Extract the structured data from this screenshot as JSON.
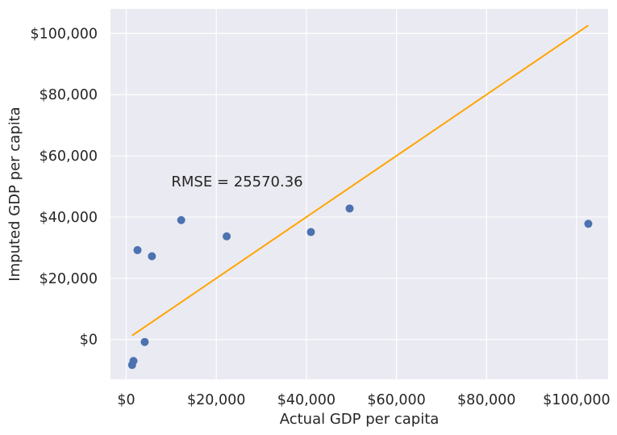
{
  "chart_data": {
    "type": "scatter",
    "xlabel": "Actual GDP per capita",
    "ylabel": "Imputed GDP per capita",
    "xlim": [
      -3500,
      107000
    ],
    "ylim": [
      -13000,
      108000
    ],
    "x_ticks": [
      0,
      20000,
      40000,
      60000,
      80000,
      100000
    ],
    "x_tick_labels": [
      "$0",
      "$20,000",
      "$40,000",
      "$60,000",
      "$80,000",
      "$100,000"
    ],
    "y_ticks": [
      0,
      20000,
      40000,
      60000,
      80000,
      100000
    ],
    "y_tick_labels": [
      "$0",
      "$20,000",
      "$40,000",
      "$60,000",
      "$80,000",
      "$100,000"
    ],
    "grid": true,
    "series": [
      {
        "type": "scatter",
        "color": "#4c72b0",
        "points": [
          {
            "x": 1300,
            "y": -8300
          },
          {
            "x": 1600,
            "y": -7000
          },
          {
            "x": 2500,
            "y": 29200
          },
          {
            "x": 4100,
            "y": -800
          },
          {
            "x": 5700,
            "y": 27200
          },
          {
            "x": 12200,
            "y": 39000
          },
          {
            "x": 22300,
            "y": 33700
          },
          {
            "x": 41000,
            "y": 35100
          },
          {
            "x": 49600,
            "y": 42800
          },
          {
            "x": 102600,
            "y": 37800
          }
        ]
      },
      {
        "type": "line",
        "color": "#ffa500",
        "points": [
          {
            "x": 1300,
            "y": 1300
          },
          {
            "x": 102600,
            "y": 102600
          }
        ]
      }
    ],
    "annotations": [
      {
        "text": "RMSE = 25570.36",
        "x": 10000,
        "y": 50000
      }
    ]
  }
}
